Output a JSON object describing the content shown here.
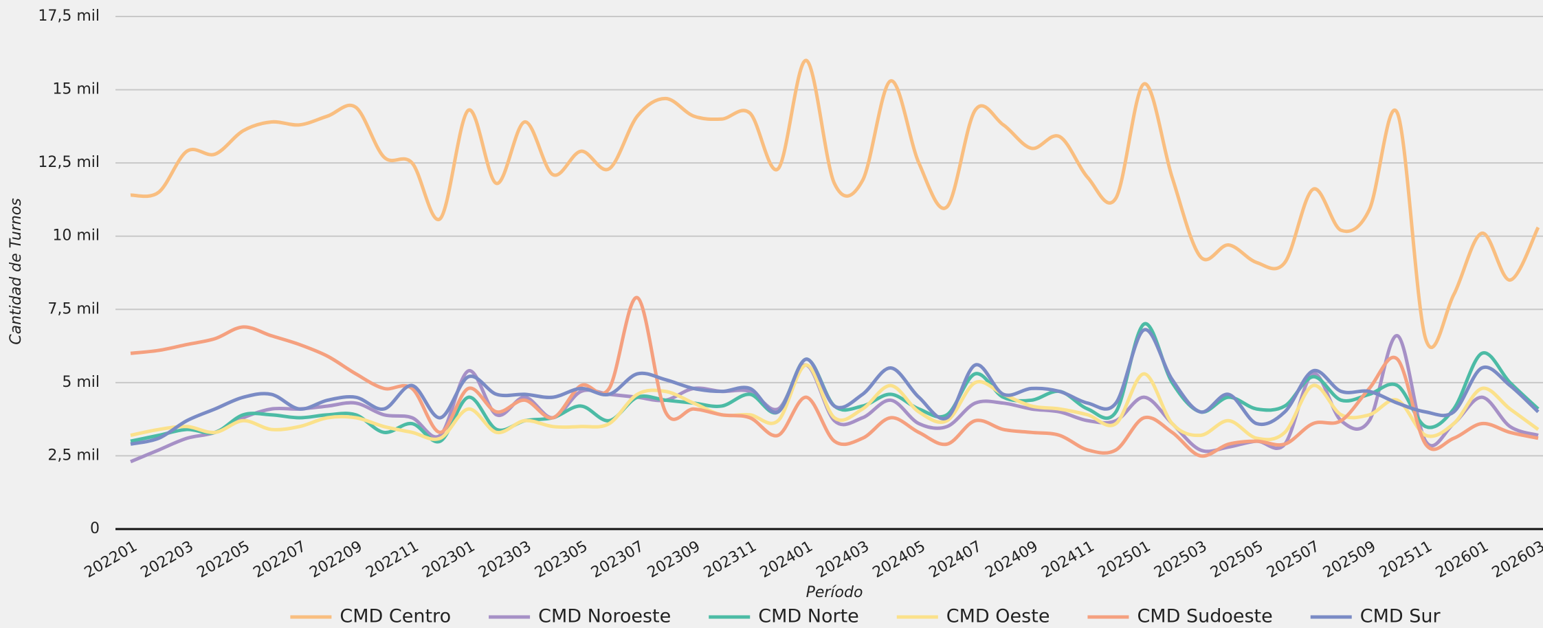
{
  "chart_data": {
    "type": "line",
    "x_label": "Período",
    "y_label": "Cantidad de Turnos",
    "categories": [
      "202201",
      null,
      "202203",
      null,
      "202205",
      null,
      "202207",
      null,
      "202209",
      null,
      "202211",
      null,
      "202301",
      null,
      "202303",
      null,
      "202305",
      null,
      "202307",
      null,
      "202309",
      null,
      "202311",
      null,
      "202401",
      null,
      "202403",
      null,
      "202405",
      null,
      "202407",
      null,
      "202409",
      null,
      "202411",
      null,
      "202501",
      null,
      "202503",
      null,
      "202505",
      null,
      "202507",
      null,
      "202509",
      null,
      "202511",
      null,
      "202601",
      null,
      "202603"
    ],
    "ylim": [
      0,
      17500
    ],
    "yticks": [
      {
        "value": 0,
        "label": "0"
      },
      {
        "value": 2500,
        "label": "2,5 mil"
      },
      {
        "value": 5000,
        "label": "5 mil"
      },
      {
        "value": 7500,
        "label": "7,5 mil"
      },
      {
        "value": 10000,
        "label": "10 mil"
      },
      {
        "value": 12500,
        "label": "12,5 mil"
      },
      {
        "value": 15000,
        "label": "15 mil"
      },
      {
        "value": 17500,
        "label": "17,5 mil"
      }
    ],
    "grid": true,
    "legend": "bottom",
    "series": [
      {
        "name": "CMD Centro",
        "color": "#f9be80",
        "values": [
          11400,
          11500,
          12900,
          12800,
          13600,
          13900,
          13800,
          14100,
          14400,
          12700,
          12500,
          10600,
          14300,
          11800,
          13900,
          12100,
          12900,
          12300,
          14100,
          14700,
          14100,
          14000,
          14200,
          12300,
          16000,
          11800,
          11900,
          15300,
          12500,
          11000,
          14300,
          13800,
          13000,
          13400,
          12000,
          11300,
          15200,
          12000,
          9300,
          9700,
          9100,
          9100,
          11600,
          10200,
          10900,
          14200,
          6500,
          8000,
          10100,
          8500,
          10300
        ]
      },
      {
        "name": "CMD Noroeste",
        "color": "#a690c6",
        "values": [
          2300,
          2700,
          3100,
          3300,
          3800,
          4100,
          4100,
          4200,
          4300,
          3900,
          3800,
          3200,
          5400,
          3900,
          4500,
          3800,
          4700,
          4600,
          4500,
          4400,
          4800,
          4700,
          4700,
          4100,
          5600,
          3700,
          3800,
          4400,
          3600,
          3500,
          4300,
          4300,
          4100,
          4000,
          3700,
          3700,
          4500,
          3600,
          2700,
          2800,
          3000,
          2900,
          5300,
          3700,
          3700,
          6600,
          3000,
          3600,
          4500,
          3500,
          3200
        ]
      },
      {
        "name": "CMD Norte",
        "color": "#4cbba5",
        "values": [
          3000,
          3200,
          3400,
          3300,
          3900,
          3900,
          3800,
          3900,
          3900,
          3300,
          3600,
          3000,
          4500,
          3400,
          3700,
          3800,
          4200,
          3700,
          4500,
          4400,
          4300,
          4200,
          4600,
          4000,
          5800,
          4200,
          4200,
          4600,
          4100,
          3900,
          5300,
          4500,
          4400,
          4700,
          4100,
          4000,
          7000,
          5000,
          4000,
          4500,
          4100,
          4200,
          5200,
          4400,
          4600,
          4900,
          3500,
          4100,
          6000,
          5000,
          4100
        ]
      },
      {
        "name": "CMD Oeste",
        "color": "#fbe18b",
        "values": [
          3200,
          3400,
          3500,
          3300,
          3700,
          3400,
          3500,
          3800,
          3800,
          3500,
          3300,
          3100,
          4100,
          3300,
          3700,
          3500,
          3500,
          3600,
          4600,
          4700,
          4300,
          3900,
          3900,
          3700,
          5600,
          3800,
          4100,
          4900,
          4000,
          3700,
          5000,
          4600,
          4200,
          4100,
          3900,
          3600,
          5300,
          3600,
          3200,
          3700,
          3100,
          3300,
          4900,
          3900,
          3900,
          4400,
          3200,
          3600,
          4800,
          4100,
          3400
        ]
      },
      {
        "name": "CMD Sudoeste",
        "color": "#f5a07f",
        "values": [
          6000,
          6100,
          6300,
          6500,
          6900,
          6600,
          6300,
          5900,
          5300,
          4800,
          4800,
          3300,
          4800,
          4000,
          4400,
          3800,
          4900,
          4800,
          7900,
          4000,
          4100,
          3900,
          3800,
          3200,
          4500,
          3000,
          3100,
          3800,
          3300,
          2900,
          3700,
          3400,
          3300,
          3200,
          2700,
          2700,
          3800,
          3300,
          2500,
          2900,
          3000,
          2900,
          3600,
          3700,
          4800,
          5800,
          2900,
          3100,
          3600,
          3300,
          3100
        ]
      },
      {
        "name": "CMD Sur",
        "color": "#7a8bc5",
        "values": [
          2900,
          3100,
          3700,
          4100,
          4500,
          4600,
          4100,
          4400,
          4500,
          4100,
          4900,
          3800,
          5200,
          4600,
          4600,
          4500,
          4800,
          4600,
          5300,
          5100,
          4800,
          4700,
          4800,
          4000,
          5800,
          4200,
          4600,
          5500,
          4500,
          3800,
          5600,
          4600,
          4800,
          4700,
          4300,
          4300,
          6800,
          5100,
          4000,
          4600,
          3600,
          4000,
          5400,
          4700,
          4700,
          4300,
          4000,
          4000,
          5500,
          4900,
          4000
        ]
      }
    ]
  }
}
